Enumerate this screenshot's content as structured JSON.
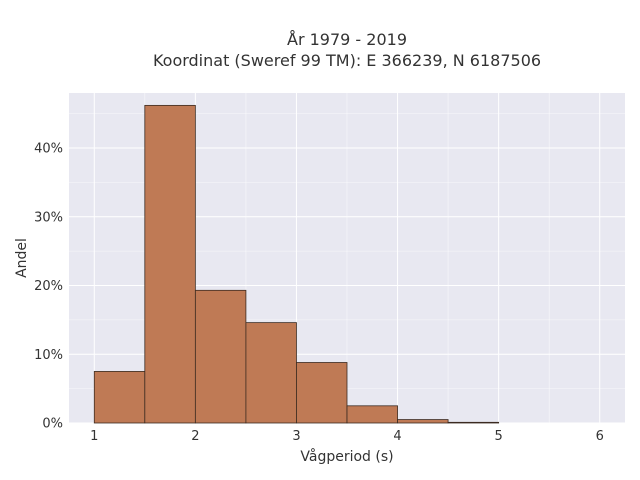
{
  "chart_data": {
    "type": "bar",
    "title_lines": [
      "År 1979 - 2019",
      "Koordinat (Sweref 99 TM): E 366239, N 6187506"
    ],
    "xlabel": "Vågperiod (s)",
    "ylabel": "Andel",
    "bin_edges": [
      1,
      1.5,
      2,
      2.5,
      3,
      3.5,
      4,
      4.5,
      5
    ],
    "values": [
      7.5,
      46.2,
      19.3,
      14.6,
      8.8,
      2.5,
      0.5,
      0.1
    ],
    "xlim": [
      0.75,
      6.25
    ],
    "ylim": [
      0,
      48
    ],
    "x_ticks": [
      1,
      2,
      3,
      4,
      5,
      6
    ],
    "x_tick_labels": [
      "1",
      "2",
      "3",
      "4",
      "5",
      "6"
    ],
    "y_ticks": [
      0,
      10,
      20,
      30,
      40
    ],
    "y_tick_labels": [
      "0%",
      "10%",
      "20%",
      "30%",
      "40%"
    ],
    "grid": true,
    "colors": {
      "bar_fill": "#bf7a55",
      "bar_stroke": "#3b2a20",
      "plot_background": "#e8e8f1",
      "grid": "#ffffff"
    }
  }
}
